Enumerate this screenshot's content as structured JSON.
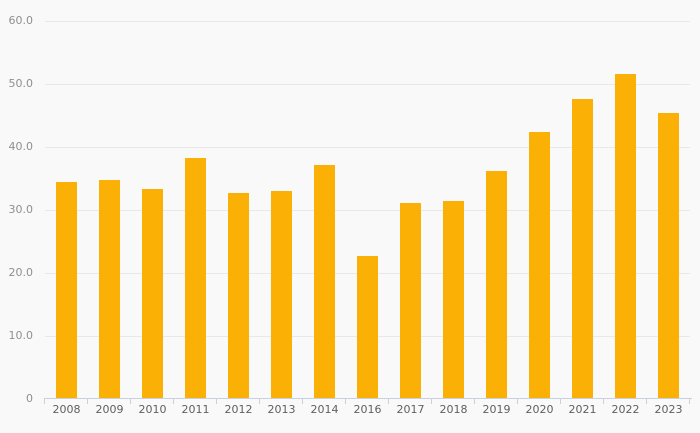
{
  "chart_data": {
    "type": "bar",
    "title": "",
    "xlabel": "",
    "ylabel": "",
    "legend": "none",
    "grid": "horizontal",
    "categories": [
      "2008",
      "2009",
      "2010",
      "2011",
      "2012",
      "2013",
      "2014",
      "2016",
      "2017",
      "2018",
      "2019",
      "2020",
      "2021",
      "2022",
      "2023"
    ],
    "values": [
      34.4,
      34.8,
      33.3,
      38.2,
      32.7,
      33.0,
      37.2,
      22.7,
      31.1,
      31.4,
      36.2,
      42.4,
      47.6,
      51.6,
      45.4
    ],
    "ylim": [
      0,
      60
    ],
    "yticks": [
      {
        "value": 0,
        "label": "0"
      },
      {
        "value": 10,
        "label": "10.0"
      },
      {
        "value": 20,
        "label": "20.0"
      },
      {
        "value": 30,
        "label": "30.0"
      },
      {
        "value": 40,
        "label": "40.0"
      },
      {
        "value": 50,
        "label": "50.0"
      },
      {
        "value": 60,
        "label": "60.0"
      }
    ],
    "colors": {
      "bar": "#FAB005",
      "background": "#f9f9f9",
      "gridline": "#e8e8e8",
      "axis_line": "#c9d0de",
      "y_label_text": "#8f8f8f",
      "x_label_text": "#5f5f5f"
    }
  }
}
